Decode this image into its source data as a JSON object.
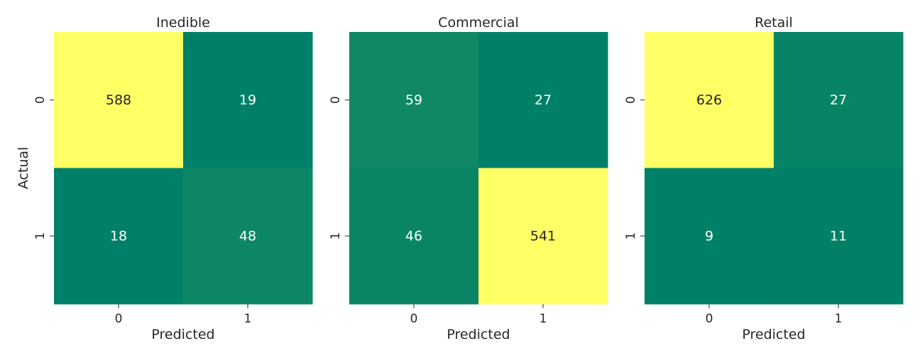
{
  "chart_data": [
    {
      "type": "heatmap",
      "title": "Inedible",
      "xlabel": "Predicted",
      "ylabel": "Actual",
      "x_categories": [
        "0",
        "1"
      ],
      "y_categories": [
        "0",
        "1"
      ],
      "values": [
        [
          588,
          19
        ],
        [
          18,
          48
        ]
      ]
    },
    {
      "type": "heatmap",
      "title": "Commercial",
      "xlabel": "Predicted",
      "ylabel": "",
      "x_categories": [
        "0",
        "1"
      ],
      "y_categories": [
        "0",
        "1"
      ],
      "values": [
        [
          59,
          27
        ],
        [
          46,
          541
        ]
      ]
    },
    {
      "type": "heatmap",
      "title": "Retail",
      "xlabel": "Predicted",
      "ylabel": "",
      "x_categories": [
        "0",
        "1"
      ],
      "y_categories": [
        "0",
        "1"
      ],
      "values": [
        [
          626,
          27
        ],
        [
          9,
          11
        ]
      ]
    }
  ],
  "colormap": {
    "low": "#008066",
    "high": "#ffff66"
  },
  "annotation_colors": {
    "on_dark": "#ffffff",
    "on_light": "#262626"
  }
}
